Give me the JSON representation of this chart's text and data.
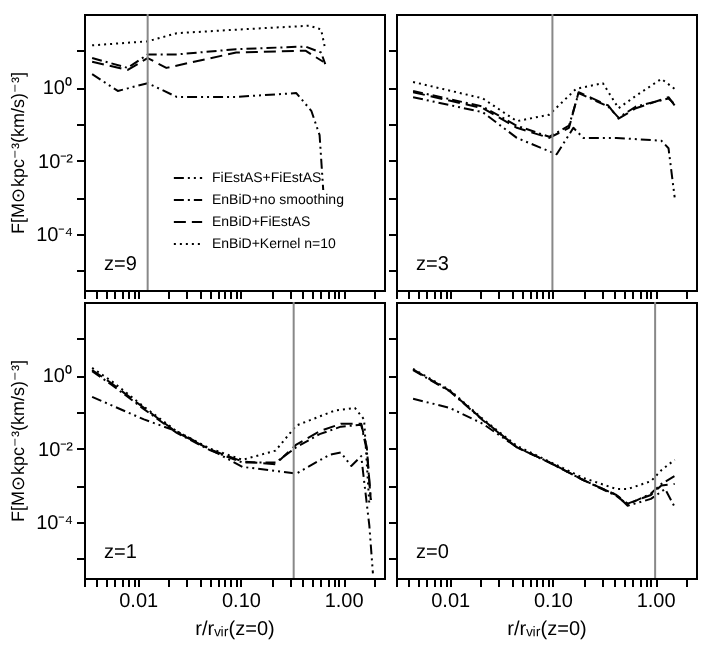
{
  "chart_data": [
    {
      "type": "line",
      "log": "xy",
      "ylabel": "F[M⊙kpc⁻³(km/s)⁻³]",
      "tick_labels": "y",
      "legend": "bottom right",
      "annotations": [
        "z=9"
      ],
      "xlim": [
        0.003,
        2.5
      ],
      "xticks": [
        {
          "value": 0.003,
          "label": null
        },
        {
          "value": 0.004,
          "label": null
        },
        {
          "value": 0.005,
          "label": null
        },
        {
          "value": 0.006,
          "label": null
        },
        {
          "value": 0.007,
          "label": null
        },
        {
          "value": 0.008,
          "label": null
        },
        {
          "value": 0.009,
          "label": null
        },
        {
          "value": 0.01,
          "label": null
        },
        {
          "value": 0.02,
          "label": null
        },
        {
          "value": 0.03,
          "label": null
        },
        {
          "value": 0.04,
          "label": null
        },
        {
          "value": 0.05,
          "label": null
        },
        {
          "value": 0.06,
          "label": null
        },
        {
          "value": 0.07,
          "label": null
        },
        {
          "value": 0.08,
          "label": null
        },
        {
          "value": 0.09,
          "label": null
        },
        {
          "value": 0.1,
          "label": null
        },
        {
          "value": 0.2,
          "label": null
        },
        {
          "value": 0.3,
          "label": null
        },
        {
          "value": 0.4,
          "label": null
        },
        {
          "value": 0.5,
          "label": null
        },
        {
          "value": 0.6,
          "label": null
        },
        {
          "value": 0.7,
          "label": null
        },
        {
          "value": 0.8,
          "label": null
        },
        {
          "value": 0.9,
          "label": null
        },
        {
          "value": 1,
          "label": null
        },
        {
          "value": 2,
          "label": null
        }
      ],
      "ylim": [
        3e-06,
        100
      ],
      "yticks": [
        {
          "value": 1e-05,
          "label": null
        },
        {
          "value": 0.0001,
          "label": "10⁻⁴"
        },
        {
          "value": 0.001,
          "label": null
        },
        {
          "value": 0.01,
          "label": "10⁻²"
        },
        {
          "value": 0.1,
          "label": null
        },
        {
          "value": 1,
          "label": "10⁰"
        },
        {
          "value": 10,
          "label": null
        }
      ],
      "ref_lines": [
        {
          "axis": "x",
          "value": 0.0125,
          "color": "#888888"
        }
      ],
      "series": [
        {
          "name": "FiEstAS+FiEstAS",
          "color": "#000000",
          "line_style": "dashdotdot",
          "x": [
            0.0036,
            0.0064,
            0.0125,
            0.024,
            0.091,
            0.35,
            0.49,
            0.59,
            0.64
          ],
          "values": [
            2.3,
            0.8,
            1.3,
            0.55,
            0.55,
            0.7,
            0.23,
            0.05,
            0.0016
          ]
        },
        {
          "name": "EnBiD+no smoothing",
          "color": "#000000",
          "line_style": "dashdot",
          "x": [
            0.0036,
            0.008,
            0.0125,
            0.024,
            0.091,
            0.43,
            0.61,
            0.67
          ],
          "values": [
            6.3,
            3.4,
            7.9,
            7.9,
            11,
            13,
            8.9,
            4.3
          ]
        },
        {
          "name": "EnBiD+FiEstAS",
          "color": "#000000",
          "line_style": "dashed",
          "x": [
            0.0036,
            0.008,
            0.0125,
            0.019,
            0.091,
            0.43,
            0.64
          ],
          "values": [
            5,
            3,
            6.3,
            3.4,
            8.9,
            10,
            5
          ]
        },
        {
          "name": "EnBiD+Kernel n=10",
          "color": "#000000",
          "line_style": "dotted",
          "x": [
            0.0036,
            0.0125,
            0.024,
            0.1,
            0.47,
            0.61,
            0.67
          ],
          "values": [
            14,
            18,
            30,
            38,
            48,
            38,
            11
          ]
        }
      ]
    },
    {
      "type": "line",
      "log": "xy",
      "tick_labels": false,
      "annotations": [
        "z=3"
      ],
      "xlim": [
        0.003,
        2.5
      ],
      "xticks": [
        {
          "value": 0.003,
          "label": null
        },
        {
          "value": 0.004,
          "label": null
        },
        {
          "value": 0.005,
          "label": null
        },
        {
          "value": 0.006,
          "label": null
        },
        {
          "value": 0.007,
          "label": null
        },
        {
          "value": 0.008,
          "label": null
        },
        {
          "value": 0.009,
          "label": null
        },
        {
          "value": 0.01,
          "label": null
        },
        {
          "value": 0.02,
          "label": null
        },
        {
          "value": 0.03,
          "label": null
        },
        {
          "value": 0.04,
          "label": null
        },
        {
          "value": 0.05,
          "label": null
        },
        {
          "value": 0.06,
          "label": null
        },
        {
          "value": 0.07,
          "label": null
        },
        {
          "value": 0.08,
          "label": null
        },
        {
          "value": 0.09,
          "label": null
        },
        {
          "value": 0.1,
          "label": null
        },
        {
          "value": 0.2,
          "label": null
        },
        {
          "value": 0.3,
          "label": null
        },
        {
          "value": 0.4,
          "label": null
        },
        {
          "value": 0.5,
          "label": null
        },
        {
          "value": 0.6,
          "label": null
        },
        {
          "value": 0.7,
          "label": null
        },
        {
          "value": 0.8,
          "label": null
        },
        {
          "value": 0.9,
          "label": null
        },
        {
          "value": 1,
          "label": null
        },
        {
          "value": 2,
          "label": null
        }
      ],
      "ylim": [
        3e-06,
        100
      ],
      "yticks": [
        {
          "value": 1e-05,
          "label": null
        },
        {
          "value": 0.0001,
          "label": null
        },
        {
          "value": 0.001,
          "label": null
        },
        {
          "value": 0.01,
          "label": null
        },
        {
          "value": 0.1,
          "label": null
        },
        {
          "value": 1,
          "label": null
        },
        {
          "value": 10,
          "label": null
        }
      ],
      "ref_lines": [
        {
          "axis": "x",
          "value": 0.1,
          "color": "#888888"
        }
      ],
      "series": [
        {
          "color": "#000000",
          "line_style": "dashdotdot",
          "x": [
            0.0044,
            0.021,
            0.045,
            0.11,
            0.16,
            0.2,
            0.42,
            1.15,
            1.35,
            1.55
          ],
          "values": [
            0.54,
            0.21,
            0.042,
            0.015,
            0.079,
            0.042,
            0.042,
            0.035,
            0.022,
            0.001
          ]
        },
        {
          "color": "#000000",
          "line_style": "dashdot",
          "x": [
            0.0044,
            0.021,
            0.045,
            0.093,
            0.145,
            0.18,
            0.35,
            0.44,
            0.65,
            1.35,
            1.55
          ],
          "values": [
            0.8,
            0.3,
            0.09,
            0.045,
            0.09,
            0.7,
            0.3,
            0.15,
            0.3,
            0.5,
            0.35
          ]
        },
        {
          "color": "#000000",
          "line_style": "dashed",
          "x": [
            0.0044,
            0.021,
            0.045,
            0.093,
            0.145,
            0.18,
            0.35,
            0.44,
            0.65,
            1.35,
            1.55
          ],
          "values": [
            0.74,
            0.27,
            0.079,
            0.042,
            0.079,
            0.74,
            0.32,
            0.14,
            0.27,
            0.54,
            0.32
          ]
        },
        {
          "color": "#000000",
          "line_style": "dotted",
          "x": [
            0.0044,
            0.021,
            0.045,
            0.093,
            0.17,
            0.31,
            0.44,
            0.65,
            1.15,
            1.55
          ],
          "values": [
            1.4,
            0.5,
            0.12,
            0.18,
            0.91,
            1.3,
            0.27,
            0.59,
            1.7,
            0.91
          ]
        }
      ]
    },
    {
      "type": "line",
      "log": "xy",
      "xlabel": "r/rᵥᵢᵣ(z=0)",
      "ylabel": "F[M⊙kpc⁻³(km/s)⁻³]",
      "annotations": [
        "z=1"
      ],
      "xlim": [
        0.003,
        2.5
      ],
      "xticks": [
        {
          "value": 0.003,
          "label": null
        },
        {
          "value": 0.004,
          "label": null
        },
        {
          "value": 0.005,
          "label": null
        },
        {
          "value": 0.006,
          "label": null
        },
        {
          "value": 0.007,
          "label": null
        },
        {
          "value": 0.008,
          "label": null
        },
        {
          "value": 0.009,
          "label": null
        },
        {
          "value": 0.01,
          "label": "0.01"
        },
        {
          "value": 0.02,
          "label": null
        },
        {
          "value": 0.03,
          "label": null
        },
        {
          "value": 0.04,
          "label": null
        },
        {
          "value": 0.05,
          "label": null
        },
        {
          "value": 0.06,
          "label": null
        },
        {
          "value": 0.07,
          "label": null
        },
        {
          "value": 0.08,
          "label": null
        },
        {
          "value": 0.09,
          "label": null
        },
        {
          "value": 0.1,
          "label": "0.10"
        },
        {
          "value": 0.2,
          "label": null
        },
        {
          "value": 0.3,
          "label": null
        },
        {
          "value": 0.4,
          "label": null
        },
        {
          "value": 0.5,
          "label": null
        },
        {
          "value": 0.6,
          "label": null
        },
        {
          "value": 0.7,
          "label": null
        },
        {
          "value": 0.8,
          "label": null
        },
        {
          "value": 0.9,
          "label": null
        },
        {
          "value": 1,
          "label": "1.00"
        },
        {
          "value": 2,
          "label": null
        }
      ],
      "ylim": [
        3e-06,
        100
      ],
      "yticks": [
        {
          "value": 1e-05,
          "label": null
        },
        {
          "value": 0.0001,
          "label": "10⁻⁴"
        },
        {
          "value": 0.001,
          "label": null
        },
        {
          "value": 0.01,
          "label": "10⁻²"
        },
        {
          "value": 0.1,
          "label": null
        },
        {
          "value": 1,
          "label": "10⁰"
        },
        {
          "value": 10,
          "label": null
        }
      ],
      "ref_lines": [
        {
          "axis": "x",
          "value": 0.33,
          "color": "#888888"
        }
      ],
      "series": [
        {
          "color": "#000000",
          "line_style": "dashdotdot",
          "x": [
            0.0036,
            0.0115,
            0.024,
            0.105,
            0.35,
            0.74,
            0.95,
            1.2,
            1.5,
            1.8,
            1.95
          ],
          "values": [
            0.26,
            0.063,
            0.03,
            0.0032,
            0.0021,
            0.0069,
            0.0079,
            0.0034,
            0.0063,
            8e-05,
            4e-06
          ]
        },
        {
          "color": "#000000",
          "line_style": "dashdot",
          "x": [
            0.0036,
            0.0056,
            0.0115,
            0.024,
            0.051,
            0.105,
            0.22,
            0.35,
            0.59,
            0.95,
            1.5,
            1.7,
            1.86
          ],
          "values": [
            1.3,
            0.55,
            0.12,
            0.027,
            0.009,
            0.0042,
            0.0042,
            0.011,
            0.025,
            0.04,
            0.045,
            0.009,
            0.0004
          ]
        },
        {
          "color": "#000000",
          "line_style": "dashed",
          "x": [
            0.0036,
            0.0056,
            0.0115,
            0.024,
            0.051,
            0.105,
            0.22,
            0.35,
            0.59,
            0.95,
            1.5,
            1.7,
            1.86
          ],
          "values": [
            1.4,
            0.6,
            0.13,
            0.028,
            0.0095,
            0.0045,
            0.0038,
            0.013,
            0.03,
            0.048,
            0.048,
            0.011,
            0.0004
          ]
        },
        {
          "color": "#000000",
          "line_style": "dotted",
          "x": [
            0.0036,
            0.0056,
            0.0115,
            0.024,
            0.051,
            0.105,
            0.22,
            0.35,
            0.83,
            1.3,
            1.6,
            1.8
          ],
          "values": [
            1.6,
            0.69,
            0.14,
            0.03,
            0.01,
            0.005,
            0.0089,
            0.043,
            0.11,
            0.13,
            0.063,
            0.0003
          ]
        }
      ]
    },
    {
      "type": "line",
      "log": "xy",
      "xlabel": "r/rᵥᵢᵣ(z=0)",
      "tick_labels": "x",
      "annotations": [
        "z=0"
      ],
      "xlim": [
        0.003,
        2.5
      ],
      "xticks": [
        {
          "value": 0.003,
          "label": null
        },
        {
          "value": 0.004,
          "label": null
        },
        {
          "value": 0.005,
          "label": null
        },
        {
          "value": 0.006,
          "label": null
        },
        {
          "value": 0.007,
          "label": null
        },
        {
          "value": 0.008,
          "label": null
        },
        {
          "value": 0.009,
          "label": null
        },
        {
          "value": 0.01,
          "label": "0.01"
        },
        {
          "value": 0.02,
          "label": null
        },
        {
          "value": 0.03,
          "label": null
        },
        {
          "value": 0.04,
          "label": null
        },
        {
          "value": 0.05,
          "label": null
        },
        {
          "value": 0.06,
          "label": null
        },
        {
          "value": 0.07,
          "label": null
        },
        {
          "value": 0.08,
          "label": null
        },
        {
          "value": 0.09,
          "label": null
        },
        {
          "value": 0.1,
          "label": "0.10"
        },
        {
          "value": 0.2,
          "label": null
        },
        {
          "value": 0.3,
          "label": null
        },
        {
          "value": 0.4,
          "label": null
        },
        {
          "value": 0.5,
          "label": null
        },
        {
          "value": 0.6,
          "label": null
        },
        {
          "value": 0.7,
          "label": null
        },
        {
          "value": 0.8,
          "label": null
        },
        {
          "value": 0.9,
          "label": null
        },
        {
          "value": 1,
          "label": "1.00"
        },
        {
          "value": 2,
          "label": null
        }
      ],
      "ylim": [
        3e-06,
        100
      ],
      "yticks": [
        {
          "value": 1e-05,
          "label": null
        },
        {
          "value": 0.0001,
          "label": null
        },
        {
          "value": 0.001,
          "label": null
        },
        {
          "value": 0.01,
          "label": null
        },
        {
          "value": 0.1,
          "label": null
        },
        {
          "value": 1,
          "label": null
        },
        {
          "value": 10,
          "label": null
        }
      ],
      "ref_lines": [
        {
          "axis": "x",
          "value": 1,
          "color": "#888888"
        }
      ],
      "series": [
        {
          "color": "#000000",
          "line_style": "dashdotdot",
          "x": [
            0.0044,
            0.01,
            0.021,
            0.045,
            0.093,
            0.2,
            0.42,
            0.54,
            0.91,
            1.25,
            1.55
          ],
          "values": [
            0.23,
            0.13,
            0.048,
            0.011,
            0.0043,
            0.0014,
            0.00055,
            0.00028,
            0.00043,
            0.0008,
            0.00026
          ]
        },
        {
          "color": "#000000",
          "line_style": "dashdot",
          "x": [
            0.0044,
            0.01,
            0.021,
            0.045,
            0.093,
            0.2,
            0.42,
            0.54,
            0.91,
            1.15,
            1.55
          ],
          "values": [
            1.4,
            0.37,
            0.06,
            0.011,
            0.0042,
            0.0014,
            0.00052,
            0.0003,
            0.0006,
            0.0011,
            0.0018
          ]
        },
        {
          "color": "#000000",
          "line_style": "dashed",
          "x": [
            0.0044,
            0.01,
            0.021,
            0.045,
            0.093,
            0.2,
            0.42,
            0.54,
            0.91,
            1.15,
            1.55
          ],
          "values": [
            1.45,
            0.38,
            0.062,
            0.011,
            0.0043,
            0.0014,
            0.00055,
            0.00032,
            0.00055,
            0.001,
            0.0011
          ]
        },
        {
          "color": "#000000",
          "line_style": "dotted",
          "x": [
            0.0044,
            0.01,
            0.021,
            0.045,
            0.093,
            0.2,
            0.42,
            0.54,
            0.91,
            1.15,
            1.55
          ],
          "values": [
            1.5,
            0.4,
            0.065,
            0.012,
            0.0045,
            0.0016,
            0.0008,
            0.0008,
            0.0013,
            0.0026,
            0.005
          ]
        }
      ]
    }
  ]
}
